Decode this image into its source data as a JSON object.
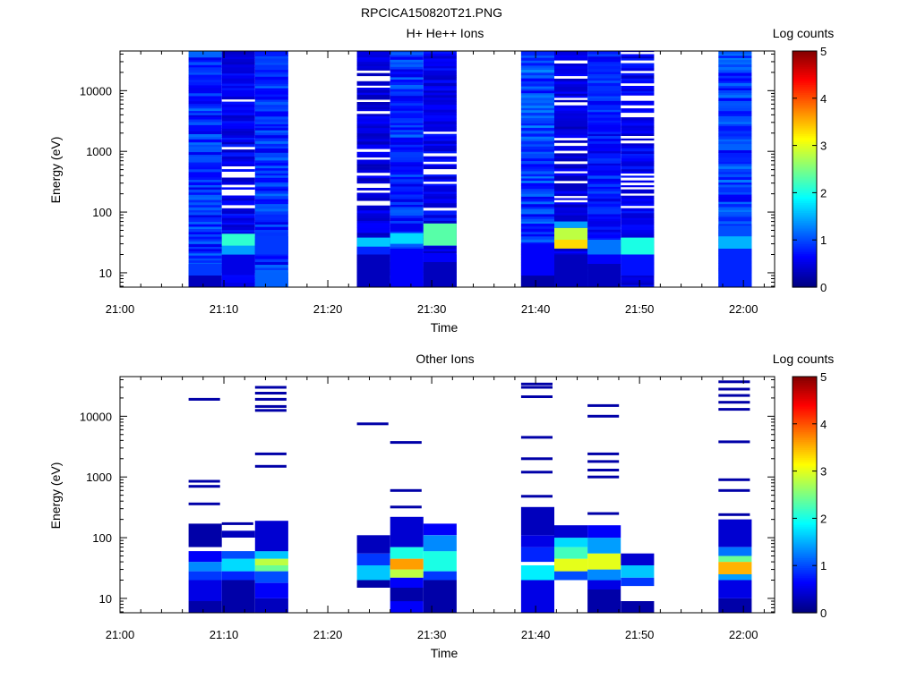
{
  "figure": {
    "title": "RPCICA150820T21.PNG"
  },
  "chart_data": [
    {
      "type": "heatmap",
      "title": "H+ He++ Ions",
      "xlabel": "Time",
      "ylabel": "Energy (eV)",
      "colorbar_label": "Log counts",
      "x_ticks": [
        "21:00",
        "21:10",
        "21:20",
        "21:30",
        "21:40",
        "21:50",
        "22:00"
      ],
      "x_range_minutes": [
        0,
        63
      ],
      "y_ticks": [
        "10",
        "100",
        "1000",
        "10000"
      ],
      "y_scale": "log",
      "y_range": [
        5.8,
        45000
      ],
      "colorbar_ticks": [
        "0",
        "1",
        "2",
        "3",
        "4",
        "5"
      ],
      "colorbar_range": [
        0,
        5
      ],
      "colormap": "jet",
      "columns": [
        {
          "t_start": 6.6,
          "t_end": 9.8,
          "base": 0.9,
          "gaps": 0,
          "bands": [
            {
              "lo": 5.8,
              "hi": 9,
              "v": 0.3
            },
            {
              "lo": 9,
              "hi": 14,
              "v": 0.9
            }
          ]
        },
        {
          "t_start": 9.8,
          "t_end": 13,
          "base": 0.6,
          "gaps": 0.22,
          "bands": [
            {
              "lo": 10,
              "hi": 20,
              "v": 0.5
            },
            {
              "lo": 20,
              "hi": 30,
              "v": 1.4
            },
            {
              "lo": 28,
              "hi": 44,
              "v": 2.1
            }
          ]
        },
        {
          "t_start": 13,
          "t_end": 16.2,
          "base": 0.9,
          "gaps": 0,
          "bands": [
            {
              "lo": 5.8,
              "hi": 10,
              "v": 1.1
            },
            {
              "lo": 20,
              "hi": 40,
              "v": 0.9
            }
          ]
        },
        {
          "t_start": 22.8,
          "t_end": 26,
          "base": 0.5,
          "gaps": 0.2,
          "bands": [
            {
              "lo": 5.8,
              "hi": 20,
              "v": 0.3
            },
            {
              "lo": 20,
              "hi": 28,
              "v": 0.8
            },
            {
              "lo": 27,
              "hi": 38,
              "v": 1.6
            }
          ]
        },
        {
          "t_start": 26,
          "t_end": 29.2,
          "base": 0.9,
          "gaps": 0,
          "bands": [
            {
              "lo": 5.8,
              "hi": 25,
              "v": 0.6
            },
            {
              "lo": 30,
              "hi": 45,
              "v": 1.7
            }
          ]
        },
        {
          "t_start": 29.2,
          "t_end": 32.4,
          "base": 0.6,
          "gaps": 0.18,
          "bands": [
            {
              "lo": 5.8,
              "hi": 15,
              "v": 0.3
            },
            {
              "lo": 15,
              "hi": 20,
              "v": 0.6
            },
            {
              "lo": 28,
              "hi": 65,
              "v": 2.3
            }
          ]
        },
        {
          "t_start": 38.6,
          "t_end": 41.8,
          "base": 1.0,
          "gaps": 0,
          "bands": [
            {
              "lo": 5.8,
              "hi": 9,
              "v": 0.2
            },
            {
              "lo": 9,
              "hi": 30,
              "v": 0.6
            }
          ]
        },
        {
          "t_start": 41.8,
          "t_end": 45,
          "base": 0.5,
          "gaps": 0.2,
          "bands": [
            {
              "lo": 5.8,
              "hi": 20,
              "v": 0.3
            },
            {
              "lo": 25,
              "hi": 35,
              "v": 3.3
            },
            {
              "lo": 35,
              "hi": 55,
              "v": 2.8
            },
            {
              "lo": 55,
              "hi": 70,
              "v": 1.4
            }
          ]
        },
        {
          "t_start": 45,
          "t_end": 48.2,
          "base": 0.8,
          "gaps": 0,
          "bands": [
            {
              "lo": 5.8,
              "hi": 14,
              "v": 0.3
            },
            {
              "lo": 14,
              "hi": 20,
              "v": 0.6
            },
            {
              "lo": 20,
              "hi": 35,
              "v": 1.2
            }
          ]
        },
        {
          "t_start": 48.2,
          "t_end": 51.4,
          "base": 0.6,
          "gaps": 0.18,
          "bands": [
            {
              "lo": 9,
              "hi": 20,
              "v": 0.7
            },
            {
              "lo": 20,
              "hi": 38,
              "v": 2.0
            }
          ]
        },
        {
          "t_start": 57.6,
          "t_end": 60.8,
          "base": 0.95,
          "gaps": 0,
          "bands": [
            {
              "lo": 5.8,
              "hi": 25,
              "v": 0.8
            },
            {
              "lo": 25,
              "hi": 40,
              "v": 1.5
            },
            {
              "lo": 40,
              "hi": 60,
              "v": 1.0
            }
          ]
        }
      ]
    },
    {
      "type": "heatmap",
      "title": "Other Ions",
      "xlabel": "Time",
      "ylabel": "Energy (eV)",
      "colorbar_label": "Log counts",
      "x_ticks": [
        "21:00",
        "21:10",
        "21:20",
        "21:30",
        "21:40",
        "21:50",
        "22:00"
      ],
      "x_range_minutes": [
        0,
        63
      ],
      "y_ticks": [
        "10",
        "100",
        "1000",
        "10000"
      ],
      "y_scale": "log",
      "y_range": [
        5.8,
        45000
      ],
      "colorbar_ticks": [
        "0",
        "1",
        "2",
        "3",
        "4",
        "5"
      ],
      "colorbar_range": [
        0,
        5
      ],
      "colormap": "jet",
      "columns": [
        {
          "t_start": 6.6,
          "t_end": 9.8,
          "bands": [
            {
              "lo": 5.8,
              "hi": 9,
              "v": 0.2
            },
            {
              "lo": 9,
              "hi": 20,
              "v": 0.5
            },
            {
              "lo": 20,
              "hi": 28,
              "v": 0.9
            },
            {
              "lo": 28,
              "hi": 40,
              "v": 1.3
            },
            {
              "lo": 40,
              "hi": 60,
              "v": 0.6
            },
            {
              "lo": 70,
              "hi": 170,
              "v": 0.2
            }
          ],
          "lines": [
            360,
            700,
            850,
            19000
          ]
        },
        {
          "t_start": 9.8,
          "t_end": 13,
          "bands": [
            {
              "lo": 5.8,
              "hi": 20,
              "v": 0.2
            },
            {
              "lo": 20,
              "hi": 28,
              "v": 0.8
            },
            {
              "lo": 28,
              "hi": 45,
              "v": 1.7
            },
            {
              "lo": 45,
              "hi": 60,
              "v": 1.0
            },
            {
              "lo": 100,
              "hi": 130,
              "v": 0.3
            }
          ],
          "lines": [
            170
          ]
        },
        {
          "t_start": 13,
          "t_end": 16.2,
          "bands": [
            {
              "lo": 5.8,
              "hi": 10,
              "v": 0.3
            },
            {
              "lo": 10,
              "hi": 18,
              "v": 0.6
            },
            {
              "lo": 18,
              "hi": 28,
              "v": 1.0
            },
            {
              "lo": 28,
              "hi": 35,
              "v": 2.4
            },
            {
              "lo": 35,
              "hi": 45,
              "v": 2.8
            },
            {
              "lo": 45,
              "hi": 60,
              "v": 1.6
            },
            {
              "lo": 60,
              "hi": 190,
              "v": 0.4
            }
          ],
          "lines": [
            1500,
            2400,
            12500,
            14500,
            19000,
            24000,
            30000
          ]
        },
        {
          "t_start": 22.8,
          "t_end": 26,
          "bands": [
            {
              "lo": 15,
              "hi": 20,
              "v": 0.2
            },
            {
              "lo": 20,
              "hi": 35,
              "v": 1.6
            },
            {
              "lo": 35,
              "hi": 55,
              "v": 0.9
            },
            {
              "lo": 55,
              "hi": 110,
              "v": 0.3
            }
          ],
          "lines": [
            7500
          ]
        },
        {
          "t_start": 26,
          "t_end": 29.2,
          "bands": [
            {
              "lo": 5.8,
              "hi": 9,
              "v": 0.6
            },
            {
              "lo": 9,
              "hi": 15,
              "v": 0.2
            },
            {
              "lo": 15,
              "hi": 22,
              "v": 0.6
            },
            {
              "lo": 22,
              "hi": 30,
              "v": 2.8
            },
            {
              "lo": 30,
              "hi": 45,
              "v": 3.6
            },
            {
              "lo": 45,
              "hi": 70,
              "v": 2.0
            },
            {
              "lo": 70,
              "hi": 220,
              "v": 0.4
            }
          ],
          "lines": [
            320,
            600,
            3700
          ]
        },
        {
          "t_start": 29.2,
          "t_end": 32.4,
          "bands": [
            {
              "lo": 5.8,
              "hi": 20,
              "v": 0.2
            },
            {
              "lo": 20,
              "hi": 28,
              "v": 0.9
            },
            {
              "lo": 28,
              "hi": 60,
              "v": 2.0
            },
            {
              "lo": 60,
              "hi": 110,
              "v": 1.3
            },
            {
              "lo": 110,
              "hi": 170,
              "v": 0.6
            }
          ],
          "lines": []
        },
        {
          "t_start": 38.6,
          "t_end": 41.8,
          "bands": [
            {
              "lo": 5.8,
              "hi": 20,
              "v": 0.5
            },
            {
              "lo": 20,
              "hi": 35,
              "v": 1.8
            },
            {
              "lo": 40,
              "hi": 70,
              "v": 0.8
            },
            {
              "lo": 70,
              "hi": 110,
              "v": 0.5
            },
            {
              "lo": 110,
              "hi": 320,
              "v": 0.3
            }
          ],
          "lines": [
            480,
            1200,
            2000,
            4500,
            21000,
            30000,
            34000
          ]
        },
        {
          "t_start": 41.8,
          "t_end": 45,
          "bands": [
            {
              "lo": 20,
              "hi": 28,
              "v": 1.0
            },
            {
              "lo": 28,
              "hi": 45,
              "v": 3.0
            },
            {
              "lo": 45,
              "hi": 70,
              "v": 2.2
            },
            {
              "lo": 70,
              "hi": 100,
              "v": 1.7
            },
            {
              "lo": 100,
              "hi": 160,
              "v": 0.4
            }
          ],
          "lines": []
        },
        {
          "t_start": 45,
          "t_end": 48.2,
          "bands": [
            {
              "lo": 5.8,
              "hi": 14,
              "v": 0.2
            },
            {
              "lo": 14,
              "hi": 20,
              "v": 0.5
            },
            {
              "lo": 20,
              "hi": 30,
              "v": 1.3
            },
            {
              "lo": 30,
              "hi": 55,
              "v": 3.0
            },
            {
              "lo": 55,
              "hi": 100,
              "v": 1.4
            },
            {
              "lo": 100,
              "hi": 160,
              "v": 0.6
            }
          ],
          "lines": [
            250,
            1000,
            1300,
            1800,
            2400,
            10000,
            15000
          ]
        },
        {
          "t_start": 48.2,
          "t_end": 51.4,
          "bands": [
            {
              "lo": 5.8,
              "hi": 9,
              "v": 0.2
            },
            {
              "lo": 16,
              "hi": 22,
              "v": 0.9
            },
            {
              "lo": 22,
              "hi": 35,
              "v": 1.6
            },
            {
              "lo": 35,
              "hi": 55,
              "v": 0.4
            }
          ],
          "lines": []
        },
        {
          "t_start": 57.6,
          "t_end": 60.8,
          "bands": [
            {
              "lo": 5.8,
              "hi": 10,
              "v": 0.2
            },
            {
              "lo": 10,
              "hi": 20,
              "v": 0.5
            },
            {
              "lo": 20,
              "hi": 25,
              "v": 1.4
            },
            {
              "lo": 25,
              "hi": 40,
              "v": 3.5
            },
            {
              "lo": 40,
              "hi": 50,
              "v": 2.4
            },
            {
              "lo": 50,
              "hi": 70,
              "v": 1.2
            },
            {
              "lo": 70,
              "hi": 200,
              "v": 0.4
            }
          ],
          "lines": [
            240,
            600,
            900,
            3800,
            13000,
            17000,
            22000,
            28000,
            37000
          ]
        }
      ]
    }
  ]
}
